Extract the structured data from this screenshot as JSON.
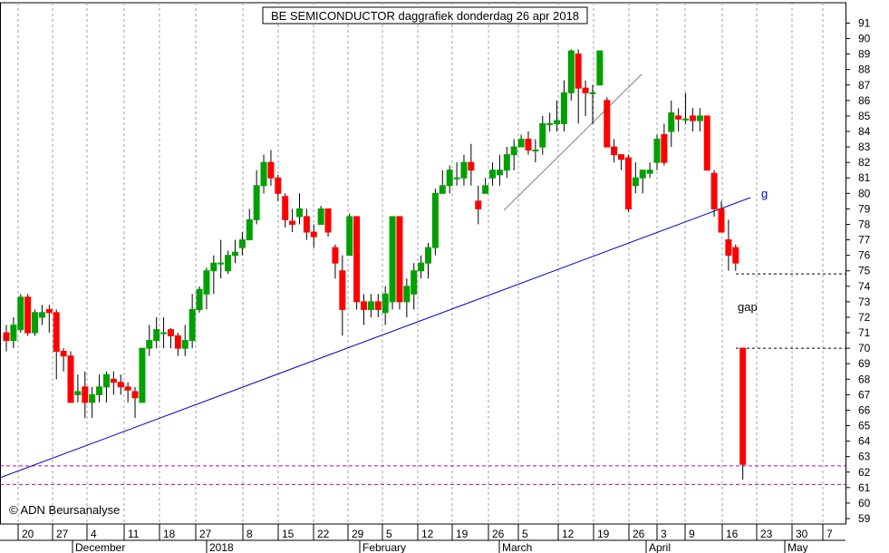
{
  "chart_data": {
    "type": "candlestick",
    "title": "BE SEMICONDUCTOR daggrafiek donderdag 26 apr 2018",
    "copyright": "© ADN Beursanalyse",
    "ylim": [
      59,
      91.5
    ],
    "y_ticks": [
      59,
      60,
      61,
      62,
      63,
      64,
      65,
      66,
      67,
      68,
      69,
      70,
      71,
      72,
      73,
      74,
      75,
      76,
      77,
      78,
      79,
      80,
      81,
      82,
      83,
      84,
      85,
      86,
      87,
      88,
      89,
      90,
      91
    ],
    "grid": true,
    "x_day_ticks": [
      "20",
      "27",
      "4",
      "11",
      "18",
      "27",
      "8",
      "15",
      "22",
      "29",
      "5",
      "12",
      "19",
      "26",
      "5",
      "12",
      "19",
      "26",
      "3",
      "9",
      "16",
      "23",
      "30",
      "7"
    ],
    "x_month_labels": [
      "December",
      "2018",
      "February",
      "March",
      "April",
      "May"
    ],
    "annotations": {
      "gap_label": "gap",
      "line_label": "g"
    },
    "levels": {
      "gap_top": 74.8,
      "gap_bottom": 70.0,
      "support_upper": 62.4,
      "support_lower": 61.2
    },
    "colors": {
      "up": "#00a000",
      "down": "#ff0000",
      "trendline": "#0000c0",
      "support": "#c000c0",
      "title_box": "#000000"
    },
    "candles": [
      [
        71.0,
        70.5,
        71.5,
        69.8
      ],
      [
        70.5,
        71.5,
        72.0,
        70.0
      ],
      [
        71.2,
        73.3,
        73.5,
        71.0
      ],
      [
        73.3,
        71.0,
        73.5,
        70.8
      ],
      [
        71.0,
        72.3,
        72.5,
        70.8
      ],
      [
        72.0,
        72.3,
        72.8,
        71.5
      ],
      [
        72.5,
        72.3,
        72.8,
        71.0
      ],
      [
        72.3,
        69.8,
        72.5,
        68.0
      ],
      [
        69.8,
        69.5,
        70.0,
        68.5
      ],
      [
        69.5,
        66.5,
        69.8,
        66.5
      ],
      [
        67.0,
        67.2,
        68.3,
        66.5
      ],
      [
        67.5,
        66.5,
        68.5,
        65.5
      ],
      [
        66.5,
        67.0,
        67.5,
        65.5
      ],
      [
        67.0,
        67.5,
        68.3,
        66.5
      ],
      [
        67.5,
        68.3,
        68.5,
        66.5
      ],
      [
        68.0,
        67.8,
        68.5,
        67.0
      ],
      [
        67.8,
        67.5,
        68.3,
        67.0
      ],
      [
        67.5,
        67.3,
        67.8,
        66.5
      ],
      [
        67.2,
        66.8,
        67.5,
        65.5
      ],
      [
        66.5,
        70.0,
        70.0,
        66.5
      ],
      [
        70.0,
        70.5,
        71.5,
        69.5
      ],
      [
        70.5,
        71.2,
        72.0,
        70.0
      ],
      [
        71.0,
        71.0,
        72.0,
        70.0
      ],
      [
        71.2,
        70.8,
        71.3,
        70.0
      ],
      [
        70.8,
        70.0,
        71.0,
        69.5
      ],
      [
        70.0,
        70.5,
        71.5,
        69.5
      ],
      [
        70.5,
        72.5,
        73.5,
        70.0
      ],
      [
        72.5,
        73.8,
        74.0,
        72.3
      ],
      [
        73.5,
        75.0,
        75.2,
        72.5
      ],
      [
        75.0,
        75.5,
        76.0,
        73.5
      ],
      [
        75.5,
        75.5,
        77.0,
        74.5
      ],
      [
        75.0,
        76.0,
        76.3,
        74.8
      ],
      [
        76.0,
        76.2,
        77.0,
        75.5
      ],
      [
        76.5,
        77.0,
        77.5,
        76.0
      ],
      [
        77.0,
        78.3,
        79.0,
        77.0
      ],
      [
        78.3,
        80.5,
        81.5,
        78.0
      ],
      [
        80.5,
        82.0,
        82.5,
        80.0
      ],
      [
        82.0,
        81.0,
        82.8,
        80.5
      ],
      [
        81.0,
        80.0,
        81.2,
        79.5
      ],
      [
        79.8,
        78.3,
        80.0,
        77.8
      ],
      [
        78.2,
        78.0,
        79.0,
        77.5
      ],
      [
        78.5,
        79.0,
        80.0,
        78.0
      ],
      [
        78.5,
        77.5,
        79.0,
        77.0
      ],
      [
        77.5,
        77.2,
        78.0,
        76.5
      ],
      [
        78.0,
        79.0,
        79.2,
        78.0
      ],
      [
        79.0,
        77.5,
        79.0,
        77.2
      ],
      [
        76.5,
        75.5,
        76.7,
        74.5
      ],
      [
        75.0,
        72.5,
        76.0,
        70.8
      ],
      [
        76.0,
        78.5,
        78.7,
        76.0
      ],
      [
        78.5,
        73.0,
        78.5,
        72.5
      ],
      [
        73.0,
        72.5,
        73.5,
        71.5
      ],
      [
        72.5,
        73.0,
        73.5,
        72.0
      ],
      [
        73.0,
        72.5,
        73.5,
        72.0
      ],
      [
        72.3,
        73.5,
        74.0,
        71.5
      ],
      [
        73.0,
        78.5,
        78.5,
        72.5
      ],
      [
        78.5,
        73.0,
        78.5,
        72.5
      ],
      [
        73.0,
        74.0,
        74.5,
        72.0
      ],
      [
        73.5,
        75.0,
        75.5,
        72.5
      ],
      [
        75.0,
        75.5,
        76.0,
        74.5
      ],
      [
        75.5,
        76.5,
        76.8,
        74.5
      ],
      [
        76.5,
        80.0,
        80.3,
        76.0
      ],
      [
        80.0,
        80.5,
        81.5,
        80.0
      ],
      [
        80.5,
        81.5,
        81.8,
        80.0
      ],
      [
        81.0,
        81.0,
        82.0,
        80.5
      ],
      [
        81.0,
        82.0,
        82.5,
        80.5
      ],
      [
        82.0,
        81.5,
        83.2,
        80.5
      ],
      [
        79.5,
        79.0,
        80.5,
        78.0
      ],
      [
        80.0,
        80.5,
        81.0,
        80.0
      ],
      [
        81.0,
        81.5,
        82.0,
        80.5
      ],
      [
        81.2,
        81.5,
        82.5,
        80.5
      ],
      [
        81.5,
        82.5,
        83.0,
        81.0
      ],
      [
        82.5,
        83.0,
        83.5,
        81.5
      ],
      [
        83.0,
        83.5,
        83.8,
        83.0
      ],
      [
        83.5,
        82.8,
        84.0,
        82.5
      ],
      [
        82.8,
        82.8,
        83.5,
        82.0
      ],
      [
        83.0,
        84.5,
        85.0,
        82.5
      ],
      [
        84.5,
        84.5,
        85.2,
        84.0
      ],
      [
        84.5,
        84.7,
        86.0,
        84.0
      ],
      [
        84.5,
        86.5,
        87.3,
        84.0
      ],
      [
        86.5,
        89.2,
        89.3,
        86.0
      ],
      [
        89.0,
        86.8,
        89.3,
        84.5
      ],
      [
        86.8,
        86.5,
        87.3,
        85.0
      ],
      [
        86.5,
        86.5,
        87.0,
        84.5
      ],
      [
        87.0,
        89.2,
        89.2,
        87.0
      ],
      [
        86.0,
        83.0,
        86.2,
        83.0
      ],
      [
        83.0,
        82.5,
        83.5,
        82.0
      ],
      [
        82.5,
        82.2,
        82.5,
        81.5
      ],
      [
        82.3,
        79.0,
        82.5,
        78.8
      ],
      [
        80.5,
        81.0,
        82.0,
        80.0
      ],
      [
        81.0,
        81.5,
        81.5,
        80.0
      ],
      [
        81.3,
        81.5,
        82.0,
        81.0
      ],
      [
        82.0,
        83.5,
        83.8,
        81.5
      ],
      [
        83.8,
        82.0,
        84.5,
        81.8
      ],
      [
        84.0,
        85.2,
        86.0,
        83.0
      ],
      [
        85.0,
        84.8,
        85.5,
        84.0
      ],
      [
        84.8,
        84.8,
        86.5,
        84.5
      ],
      [
        85.0,
        84.7,
        85.5,
        84.0
      ],
      [
        84.7,
        85.0,
        85.5,
        84.0
      ],
      [
        85.0,
        81.5,
        85.0,
        81.5
      ],
      [
        81.3,
        79.0,
        81.5,
        78.5
      ],
      [
        79.0,
        77.5,
        79.5,
        77.5
      ],
      [
        77.0,
        76.0,
        78.3,
        75.0
      ],
      [
        76.5,
        75.5,
        76.7,
        75.0
      ],
      [
        70.0,
        62.5,
        70.0,
        61.5
      ]
    ]
  }
}
